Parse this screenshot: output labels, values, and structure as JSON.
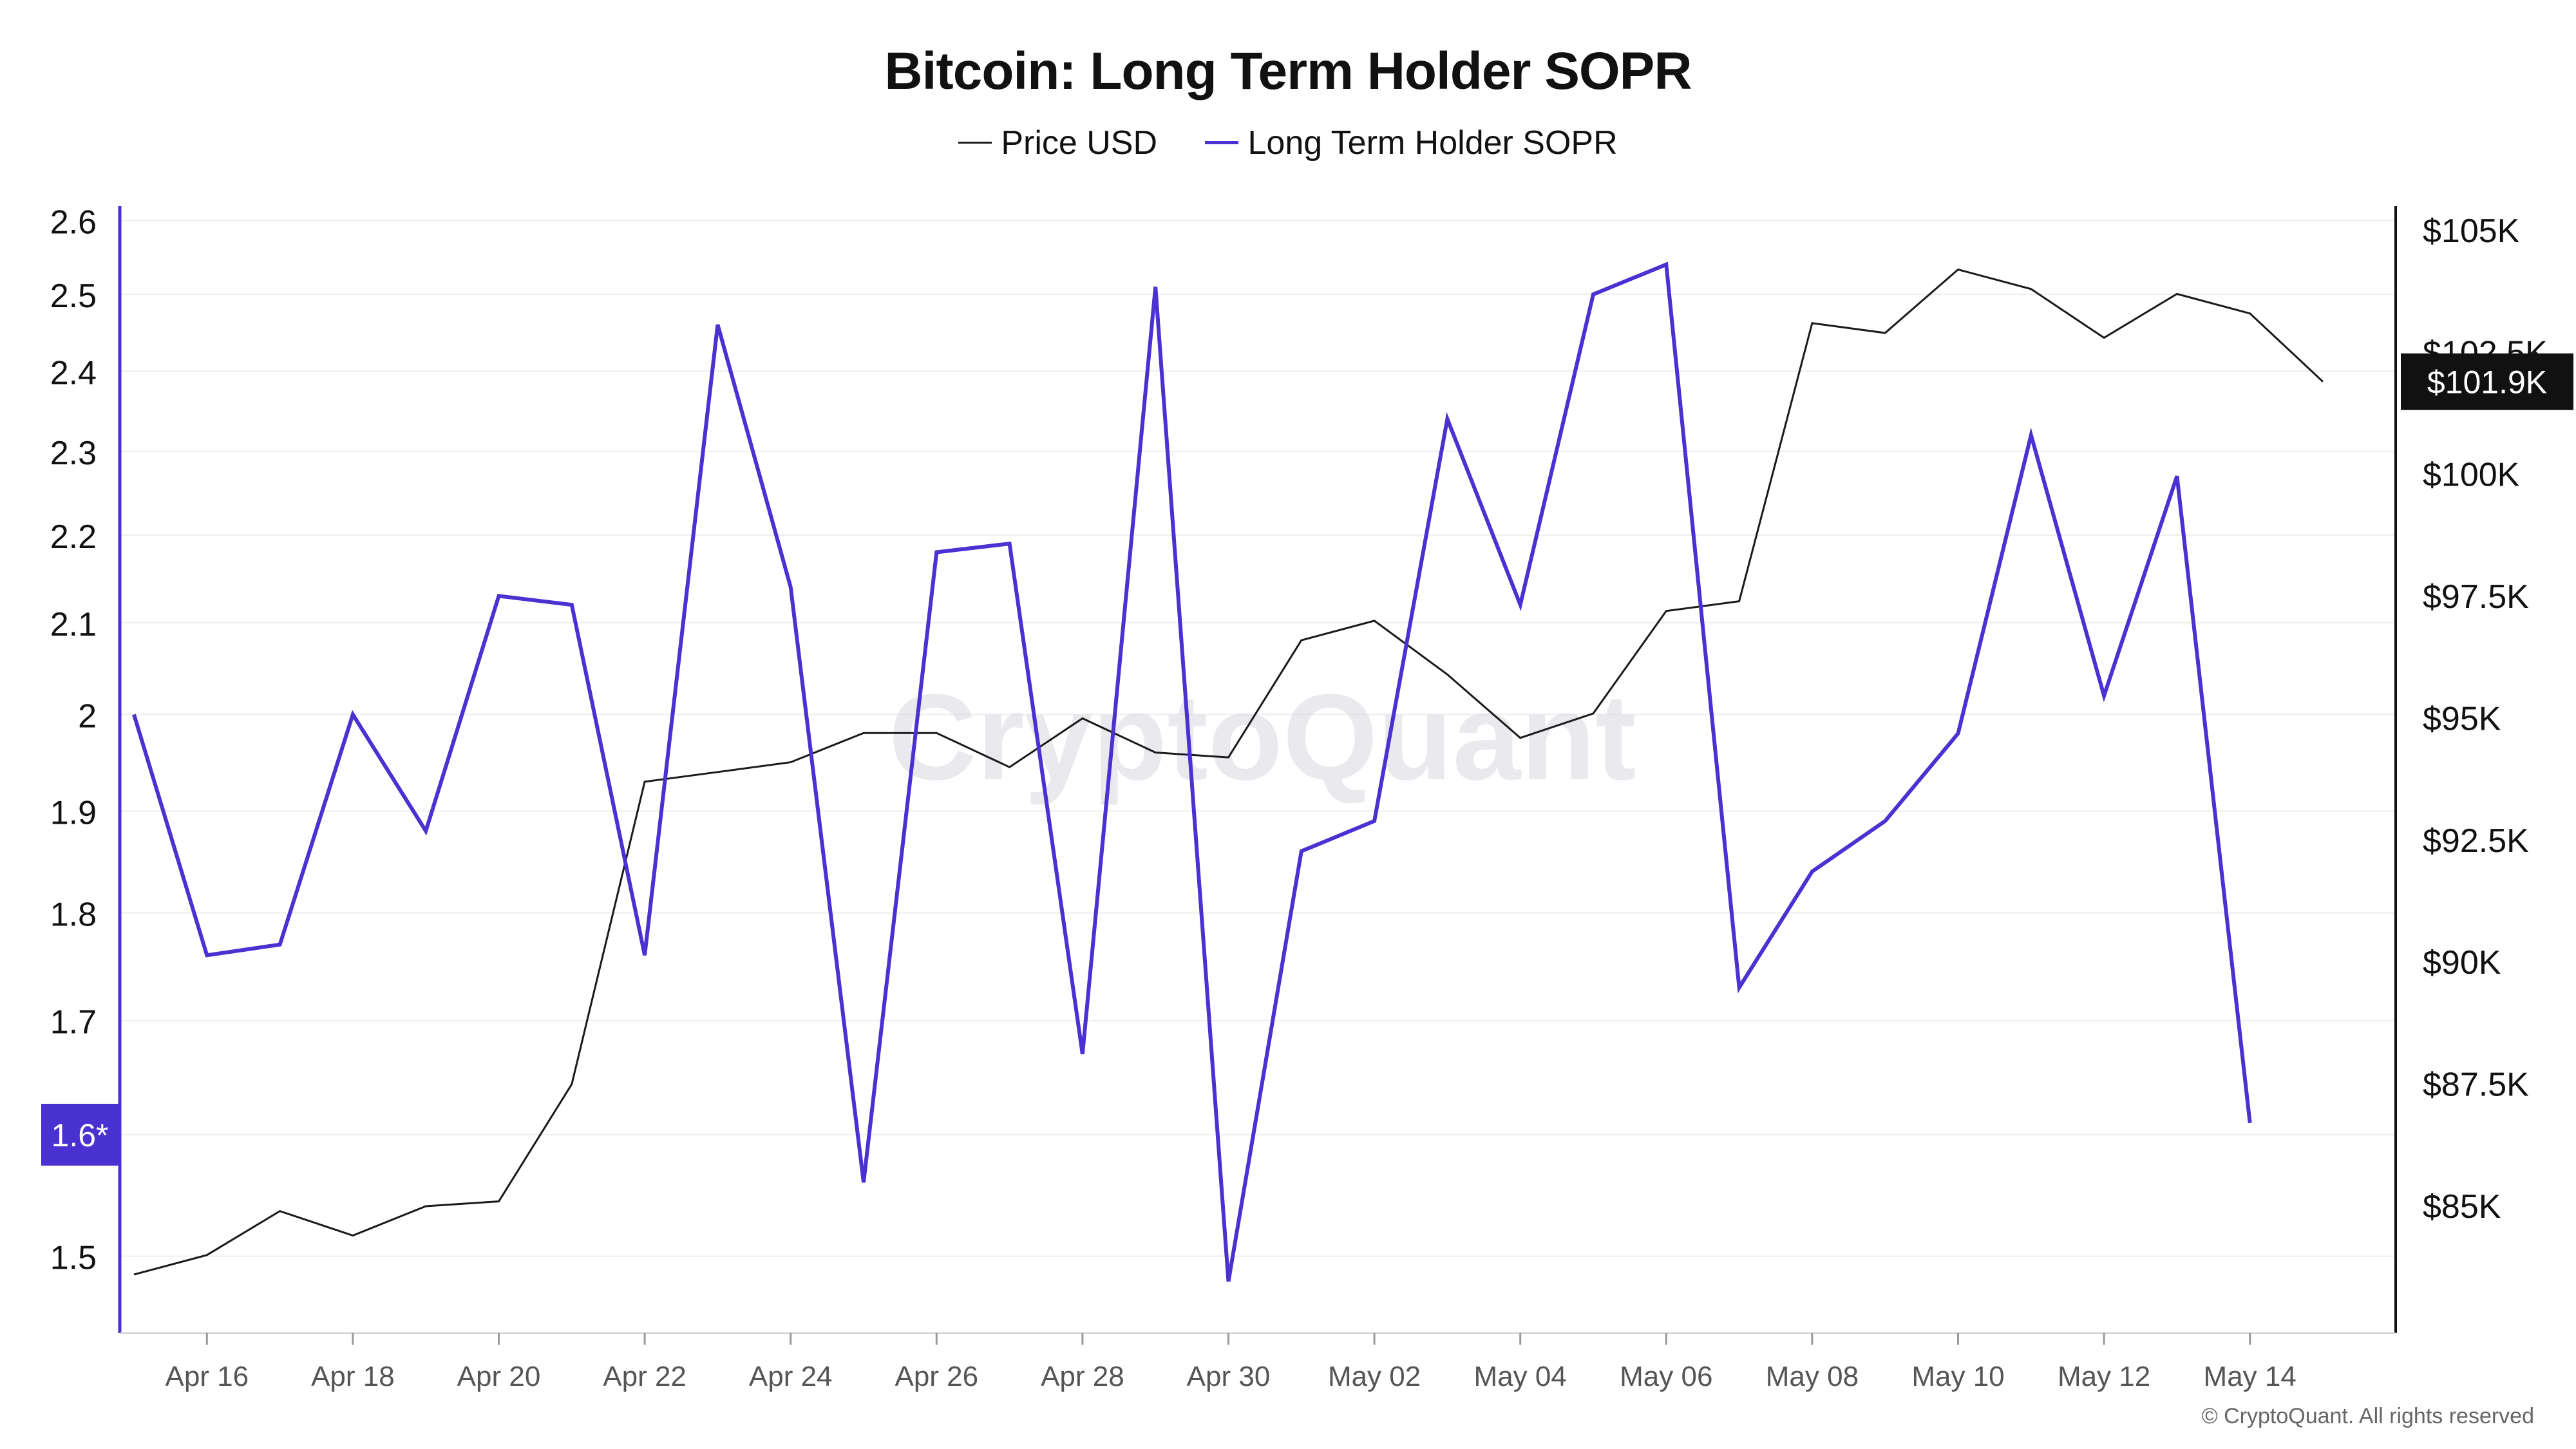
{
  "chart_data": {
    "type": "line",
    "title": "Bitcoin: Long Term Holder SOPR",
    "legend": [
      {
        "name": "Price USD",
        "color": "#1a1a1a"
      },
      {
        "name": "Long Term Holder SOPR",
        "color": "#4a31d1"
      }
    ],
    "x": [
      "Apr 15",
      "Apr 16",
      "Apr 17",
      "Apr 18",
      "Apr 19",
      "Apr 20",
      "Apr 21",
      "Apr 22",
      "Apr 23",
      "Apr 24",
      "Apr 25",
      "Apr 26",
      "Apr 27",
      "Apr 28",
      "Apr 29",
      "Apr 30",
      "May 01",
      "May 02",
      "May 03",
      "May 04",
      "May 05",
      "May 06",
      "May 07",
      "May 08",
      "May 09",
      "May 10",
      "May 11",
      "May 12",
      "May 13",
      "May 14",
      "May 15"
    ],
    "x_tick_labels": [
      "Apr 16",
      "Apr 18",
      "Apr 20",
      "Apr 22",
      "Apr 24",
      "Apr 26",
      "Apr 28",
      "Apr 30",
      "May 02",
      "May 04",
      "May 06",
      "May 08",
      "May 10",
      "May 12",
      "May 14"
    ],
    "series": [
      {
        "name": "Price USD",
        "axis": "right",
        "color": "#1a1a1a",
        "values": [
          83600,
          84000,
          84900,
          84400,
          85000,
          85100,
          87500,
          93700,
          93900,
          94100,
          94700,
          94700,
          94000,
          95000,
          94300,
          94200,
          96600,
          97000,
          95900,
          94600,
          95100,
          97200,
          97400,
          103100,
          102900,
          104200,
          103800,
          102800,
          103700,
          103300,
          101900
        ]
      },
      {
        "name": "Long Term Holder SOPR",
        "axis": "left",
        "color": "#4a31d1",
        "values": [
          2.0,
          1.76,
          1.77,
          2.0,
          1.88,
          2.13,
          2.12,
          1.76,
          2.46,
          2.14,
          1.56,
          2.18,
          2.19,
          1.67,
          2.51,
          1.48,
          1.86,
          1.89,
          2.34,
          2.12,
          2.5,
          2.54,
          1.73,
          1.84,
          1.89,
          1.98,
          2.32,
          2.02,
          2.27,
          1.61,
          null
        ]
      }
    ],
    "y_left": {
      "ticks": [
        1.5,
        1.7,
        1.8,
        1.9,
        2,
        2.1,
        2.2,
        2.3,
        2.4,
        2.5,
        2.6
      ],
      "tick_labels": [
        "1.5",
        "1.7",
        "1.8",
        "1.9",
        "2",
        "2.1",
        "2.2",
        "2.3",
        "2.4",
        "2.5",
        "2.6"
      ],
      "marker_label": "1.6*",
      "marker_value": 1.6,
      "ylim": [
        1.44,
        2.62
      ],
      "scale": "log"
    },
    "y_right": {
      "ticks": [
        85000,
        87500,
        90000,
        92500,
        95000,
        97500,
        100000,
        102500,
        105000
      ],
      "tick_labels": [
        "$85K",
        "$87.5K",
        "$90K",
        "$92.5K",
        "$95K",
        "$97.5K",
        "$100K",
        "$102.5K",
        "$105K"
      ],
      "current_label": "$101.9K",
      "current_value": 101900,
      "ylim": [
        82400,
        105500
      ]
    },
    "grid": true,
    "legend_position": "top-center"
  },
  "watermark": "CryptoQuant",
  "footer": {
    "copyright": "© CryptoQuant. All rights reserved"
  },
  "colors": {
    "sopr": "#4a31d1",
    "price": "#1a1a1a",
    "badge_dark": "#111111",
    "grid": "#eeeeee"
  }
}
